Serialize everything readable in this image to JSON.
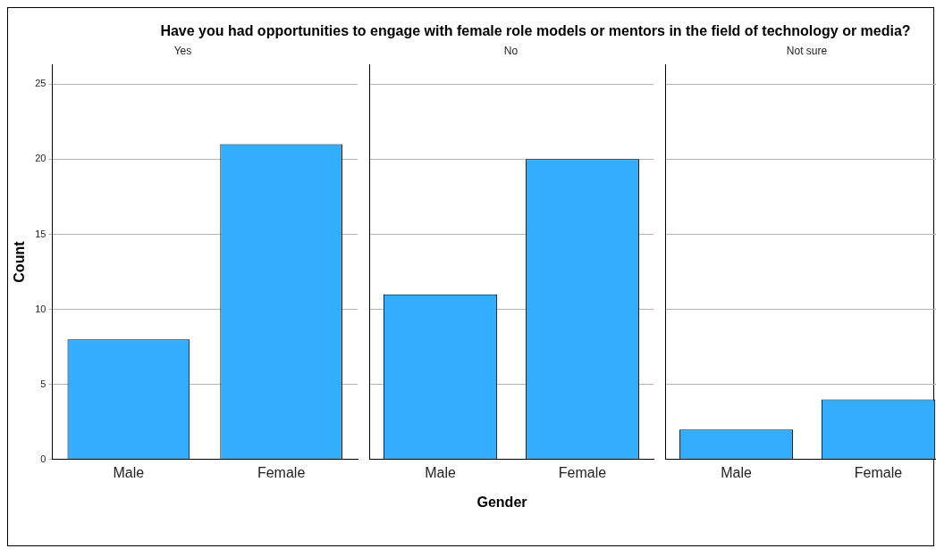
{
  "chart_data": [
    {
      "type": "bar",
      "title": "Have you had opportunities to engage with female role models or mentors in the field of technology or media?",
      "subtitle": "Yes",
      "ylabel": "Count",
      "categories": [
        "Male",
        "Female"
      ],
      "values": [
        8,
        21
      ],
      "color": "#33adff",
      "ylim": [
        0,
        26.3
      ],
      "yticks": [
        0,
        5,
        10,
        15,
        20,
        25
      ],
      "grid": "y"
    },
    {
      "type": "bar",
      "subtitle": "No",
      "xlabel": "Gender",
      "categories": [
        "Male",
        "Female"
      ],
      "values": [
        11,
        20
      ],
      "color": "#33adff",
      "ylim": [
        0,
        26.3
      ],
      "yticks": [
        0,
        5,
        10,
        15,
        20,
        25
      ],
      "grid": "y",
      "tick_labels": "x"
    },
    {
      "type": "bar",
      "subtitle": "Not sure",
      "categories": [
        "Male",
        "Female"
      ],
      "values": [
        2,
        4
      ],
      "color": "#33adff",
      "ylim": [
        0,
        26.3
      ],
      "yticks": [
        0,
        5,
        10,
        15,
        20,
        25
      ],
      "grid": "y",
      "tick_labels": "x"
    }
  ]
}
